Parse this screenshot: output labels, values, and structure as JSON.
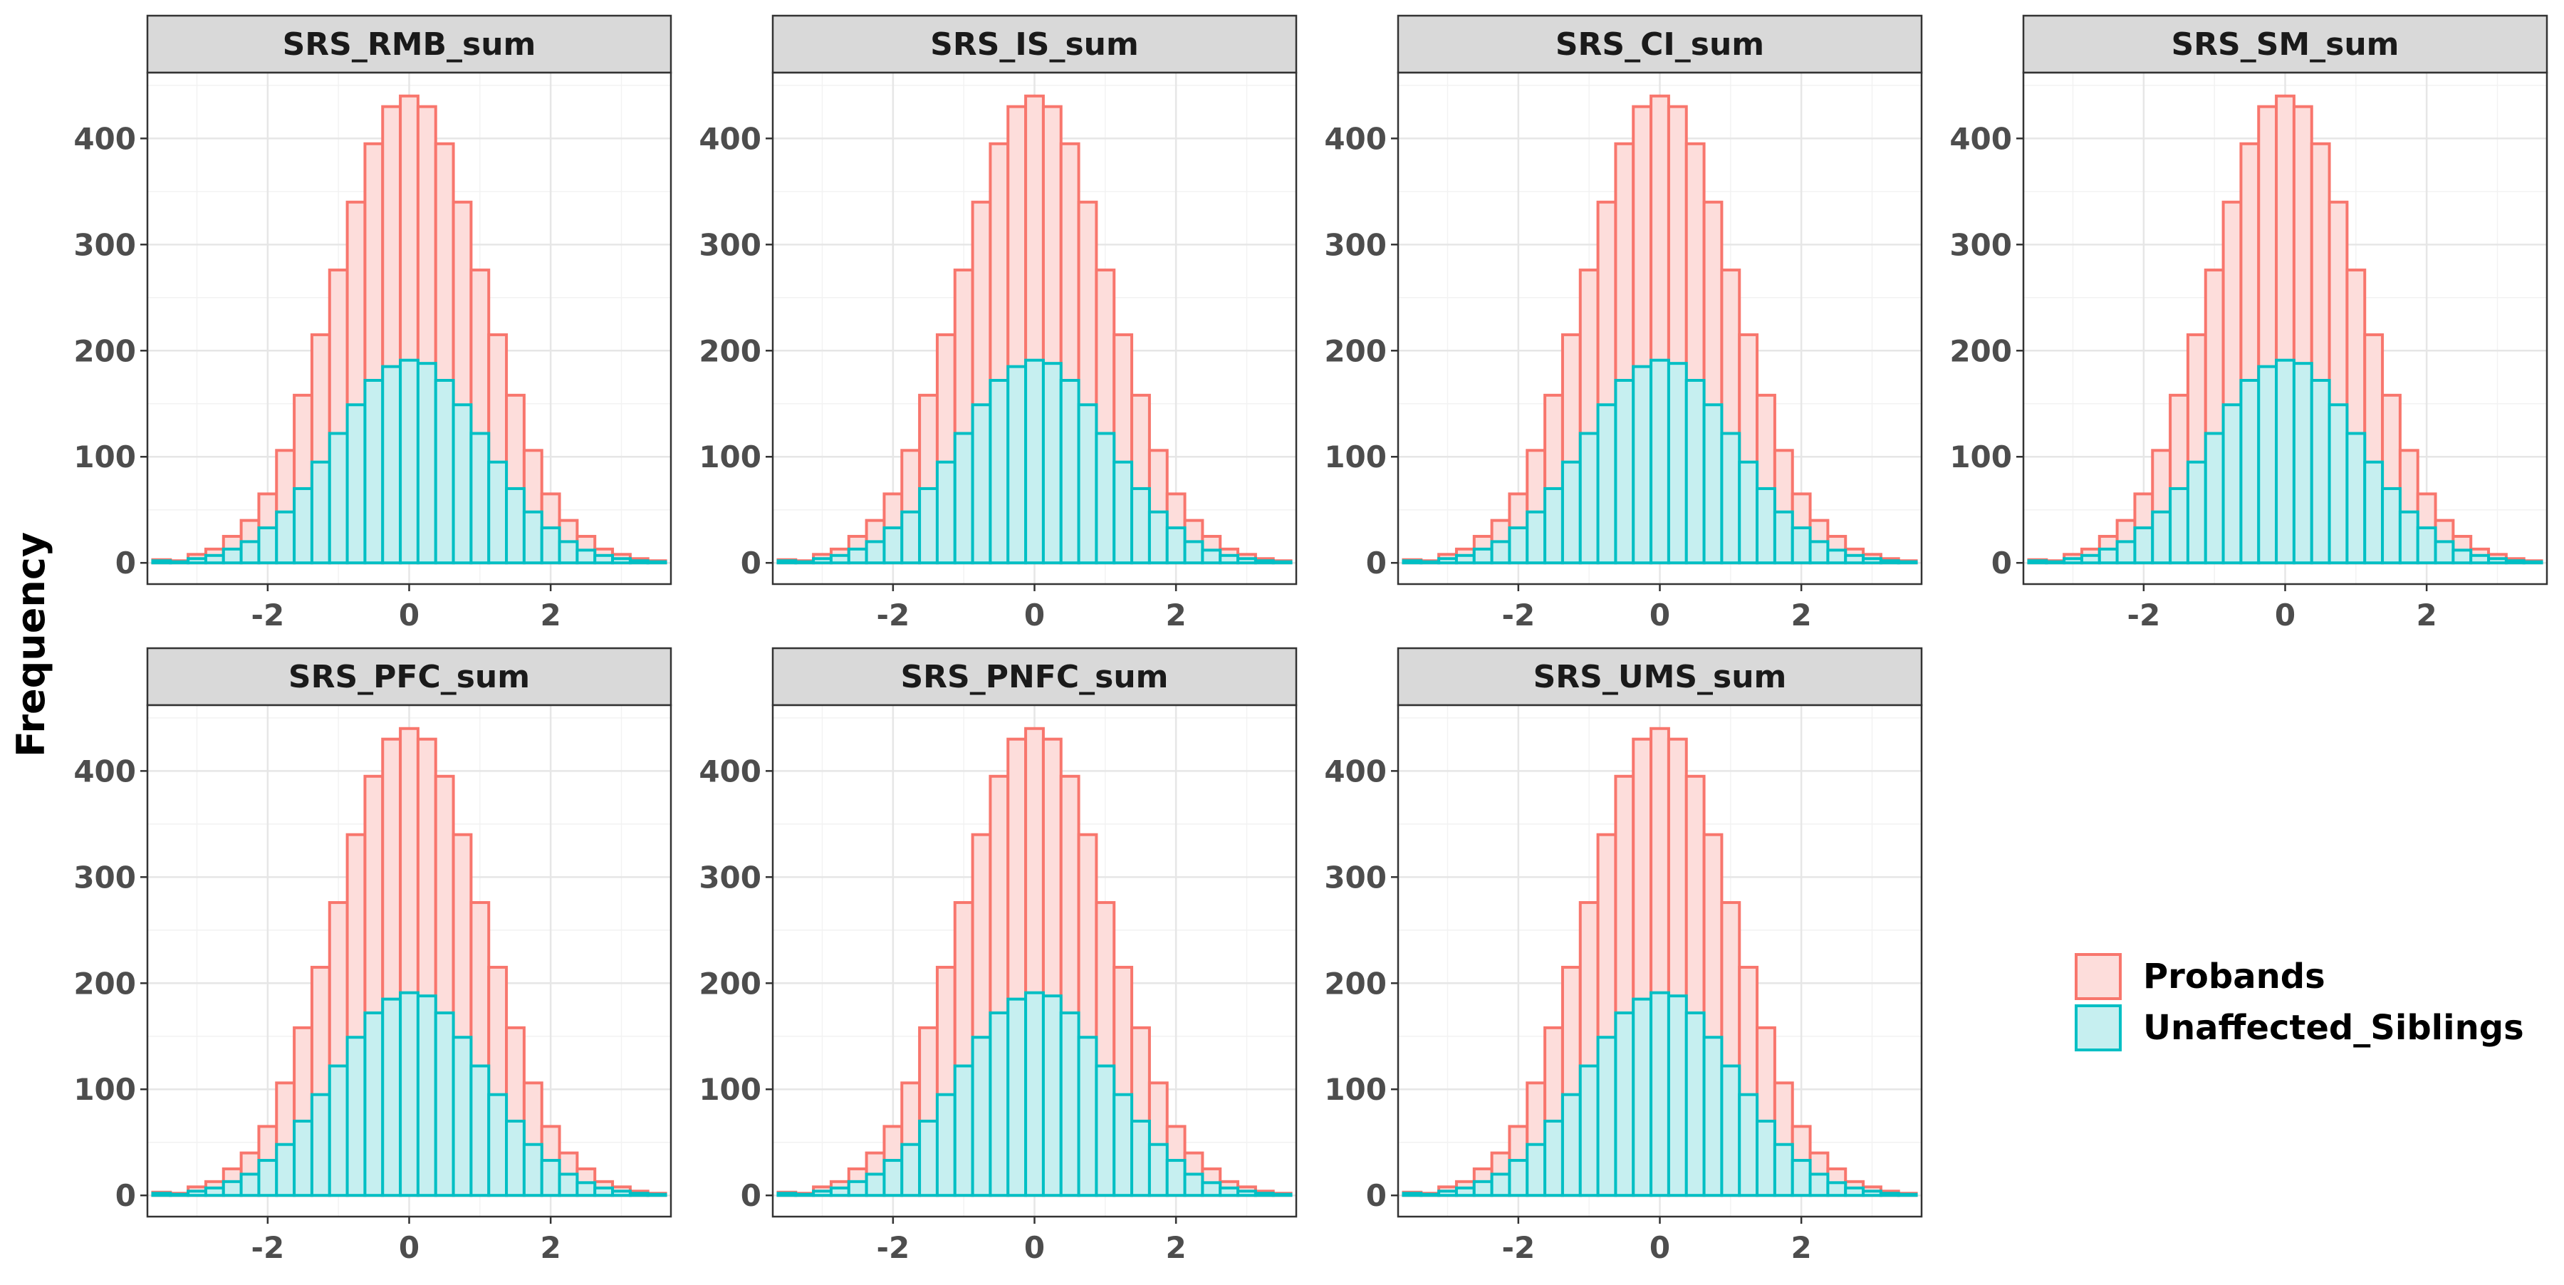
{
  "chart_data": {
    "type": "histogram",
    "facet_layout": "4 columns x 2 rows, facets fill row-wise",
    "ylabel": "Frequency",
    "xlabel": "",
    "x_ticks": [
      -2,
      0,
      2
    ],
    "y_ticks": [
      0,
      100,
      200,
      300,
      400
    ],
    "xlim": [
      -3.7,
      3.7
    ],
    "ylim": [
      -20,
      462
    ],
    "bin_width": 0.25,
    "bin_centers": [
      -3.5,
      -3.25,
      -3.0,
      -2.75,
      -2.5,
      -2.25,
      -2.0,
      -1.75,
      -1.5,
      -1.25,
      -1.0,
      -0.75,
      -0.5,
      -0.25,
      0.0,
      0.25,
      0.5,
      0.75,
      1.0,
      1.25,
      1.5,
      1.75,
      2.0,
      2.25,
      2.5,
      2.75,
      3.0,
      3.25,
      3.5
    ],
    "grid": true,
    "legend_position": "right",
    "series": [
      {
        "name": "Probands",
        "color": "#F8766D",
        "fill": "#FDDDDB",
        "values": [
          3,
          2,
          8,
          13,
          25,
          40,
          65,
          106,
          158,
          215,
          276,
          340,
          395,
          430,
          440,
          430,
          395,
          340,
          276,
          215,
          158,
          106,
          65,
          40,
          25,
          13,
          8,
          4,
          2
        ]
      },
      {
        "name": "Unaffected_Siblings",
        "color": "#00BFC4",
        "fill": "#C6EFF0",
        "values": [
          2,
          1,
          4,
          7,
          13,
          20,
          33,
          48,
          70,
          95,
          122,
          149,
          172,
          185,
          191,
          188,
          172,
          149,
          122,
          95,
          70,
          48,
          33,
          20,
          12,
          7,
          4,
          2,
          1
        ]
      }
    ],
    "facets": [
      {
        "title": "SRS_RMB_sum"
      },
      {
        "title": "SRS_IS_sum"
      },
      {
        "title": "SRS_CI_sum"
      },
      {
        "title": "SRS_SM_sum"
      },
      {
        "title": "SRS_PFC_sum"
      },
      {
        "title": "SRS_PNFC_sum"
      },
      {
        "title": "SRS_UMS_sum"
      }
    ]
  }
}
